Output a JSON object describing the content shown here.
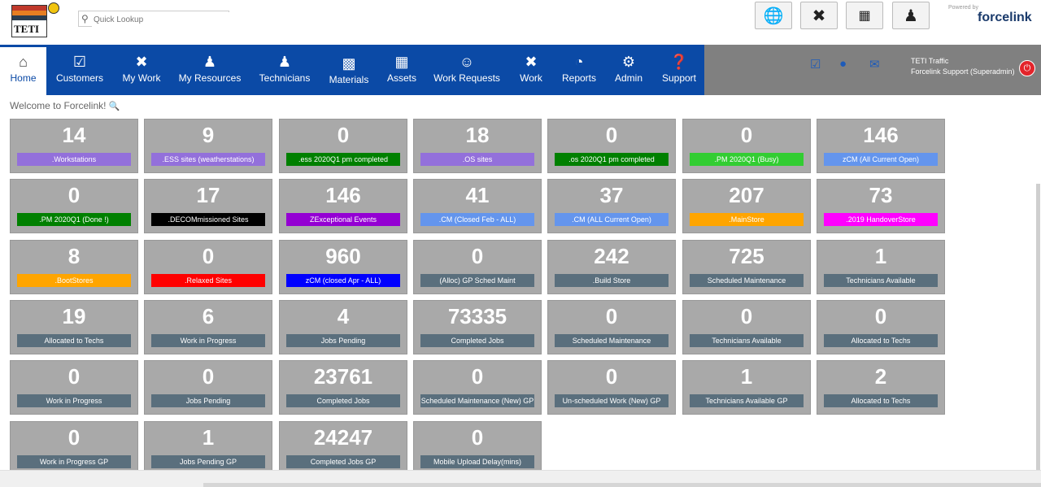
{
  "header": {
    "logo_text": "TETI",
    "search_placeholder": "Quick Lookup",
    "brand_powered": "Powered by",
    "brand_name": "forcelink"
  },
  "nav": {
    "items": [
      {
        "label": "Home",
        "icon": "home-icon"
      },
      {
        "label": "Customers",
        "icon": "lock-icon"
      },
      {
        "label": "My Work",
        "icon": "tools-icon"
      },
      {
        "label": "My Resources",
        "icon": "worker-icon"
      },
      {
        "label": "Technicians",
        "icon": "technician-icon"
      },
      {
        "label": "Materials",
        "icon": "box-icon"
      },
      {
        "label": "Assets",
        "icon": "hierarchy-icon"
      },
      {
        "label": "Work Requests",
        "icon": "support-agent-icon"
      },
      {
        "label": "Work",
        "icon": "tools-icon"
      },
      {
        "label": "Reports",
        "icon": "pie-chart-icon"
      },
      {
        "label": "Admin",
        "icon": "gear-icon"
      },
      {
        "label": "Support",
        "icon": "question-icon"
      }
    ]
  },
  "user": {
    "org": "TETI Traffic",
    "name": "Forcelink Support (Superadmin)"
  },
  "welcome": "Welcome to Forcelink!",
  "colors": {
    "nav_blue": "#0b4aa6",
    "tile_bg": "#a9a9a9",
    "label_default": "#5a6f7d"
  },
  "tiles": [
    {
      "value": "14",
      "label": ".Workstations",
      "color": "#9370db"
    },
    {
      "value": "9",
      "label": ".ESS sites (weatherstations)",
      "color": "#9370db"
    },
    {
      "value": "0",
      "label": ".ess 2020Q1 pm completed",
      "color": "#008000"
    },
    {
      "value": "18",
      "label": ".OS sites",
      "color": "#9370db"
    },
    {
      "value": "0",
      "label": ".os 2020Q1 pm completed",
      "color": "#008000"
    },
    {
      "value": "0",
      "label": ".PM 2020Q1 (Busy)",
      "color": "#32cd32"
    },
    {
      "value": "146",
      "label": "zCM (All Current Open)",
      "color": "#6495ed"
    },
    {
      "value": "0",
      "label": ".PM 2020Q1 (Done !)",
      "color": "#008000"
    },
    {
      "value": "17",
      "label": ".DECOMmissioned Sites",
      "color": "#000000"
    },
    {
      "value": "146",
      "label": "ZExceptional Events",
      "color": "#9400d3"
    },
    {
      "value": "41",
      "label": ".CM (Closed Feb - ALL)",
      "color": "#6495ed"
    },
    {
      "value": "37",
      "label": ".CM (ALL Current Open)",
      "color": "#6495ed"
    },
    {
      "value": "207",
      "label": ".MainStore",
      "color": "#ffa500"
    },
    {
      "value": "73",
      "label": ".2019 HandoverStore",
      "color": "#ff00ff"
    },
    {
      "value": "8",
      "label": ".BootStores",
      "color": "#ffa500"
    },
    {
      "value": "0",
      "label": ".Relaxed Sites",
      "color": "#ff0000"
    },
    {
      "value": "960",
      "label": "zCM (closed Apr - ALL)",
      "color": "#0000ff"
    },
    {
      "value": "0",
      "label": "(Alloc) GP Sched Maint",
      "color": "#5a6f7d"
    },
    {
      "value": "242",
      "label": ".Build Store",
      "color": "#5a6f7d"
    },
    {
      "value": "725",
      "label": "Scheduled Maintenance",
      "color": "#5a6f7d"
    },
    {
      "value": "1",
      "label": "Technicians Available",
      "color": "#5a6f7d"
    },
    {
      "value": "19",
      "label": "Allocated to Techs",
      "color": "#5a6f7d"
    },
    {
      "value": "6",
      "label": "Work in Progress",
      "color": "#5a6f7d"
    },
    {
      "value": "4",
      "label": "Jobs Pending",
      "color": "#5a6f7d"
    },
    {
      "value": "73335",
      "label": "Completed Jobs",
      "color": "#5a6f7d"
    },
    {
      "value": "0",
      "label": "Scheduled Maintenance",
      "color": "#5a6f7d"
    },
    {
      "value": "0",
      "label": "Technicians Available",
      "color": "#5a6f7d"
    },
    {
      "value": "0",
      "label": "Allocated to Techs",
      "color": "#5a6f7d"
    },
    {
      "value": "0",
      "label": "Work in Progress",
      "color": "#5a6f7d"
    },
    {
      "value": "0",
      "label": "Jobs Pending",
      "color": "#5a6f7d"
    },
    {
      "value": "23761",
      "label": "Completed Jobs",
      "color": "#5a6f7d"
    },
    {
      "value": "0",
      "label": "Scheduled Maintenance (New) GP",
      "color": "#5a6f7d"
    },
    {
      "value": "0",
      "label": "Un-scheduled Work (New) GP",
      "color": "#5a6f7d"
    },
    {
      "value": "1",
      "label": "Technicians Available GP",
      "color": "#5a6f7d"
    },
    {
      "value": "2",
      "label": "Allocated to Techs",
      "color": "#5a6f7d"
    },
    {
      "value": "0",
      "label": "Work in Progress GP",
      "color": "#5a6f7d"
    },
    {
      "value": "1",
      "label": "Jobs Pending GP",
      "color": "#5a6f7d"
    },
    {
      "value": "24247",
      "label": "Completed Jobs GP",
      "color": "#5a6f7d"
    },
    {
      "value": "0",
      "label": "Mobile Upload Delay(mins)",
      "color": "#5a6f7d"
    }
  ]
}
